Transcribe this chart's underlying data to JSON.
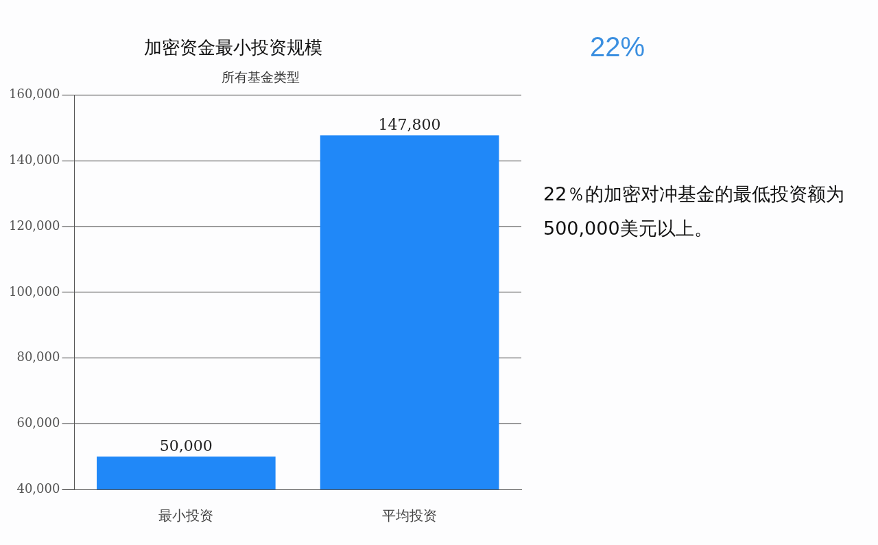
{
  "chart_data": {
    "type": "bar",
    "title": "加密资金最小投资规模",
    "subtitle": "所有基金类型",
    "categories": [
      "最小投资",
      "平均投资"
    ],
    "values": [
      50000,
      147800
    ],
    "value_labels": [
      "50,000",
      "147,800"
    ],
    "color": "#2088f8",
    "ylim": [
      40000,
      160000
    ],
    "yticks": [
      {
        "value": 40000,
        "label": "40,000"
      },
      {
        "value": 60000,
        "label": "60,000"
      },
      {
        "value": 80000,
        "label": "80,000"
      },
      {
        "value": 100000,
        "label": "100,000"
      },
      {
        "value": 120000,
        "label": "120,000"
      },
      {
        "value": 140000,
        "label": "140,000"
      },
      {
        "value": 160000,
        "label": "160,000"
      }
    ],
    "grid": "y",
    "annotations": [
      "22%",
      "22％的加密对冲基金的最低投资额为500,000美元以上。"
    ]
  }
}
